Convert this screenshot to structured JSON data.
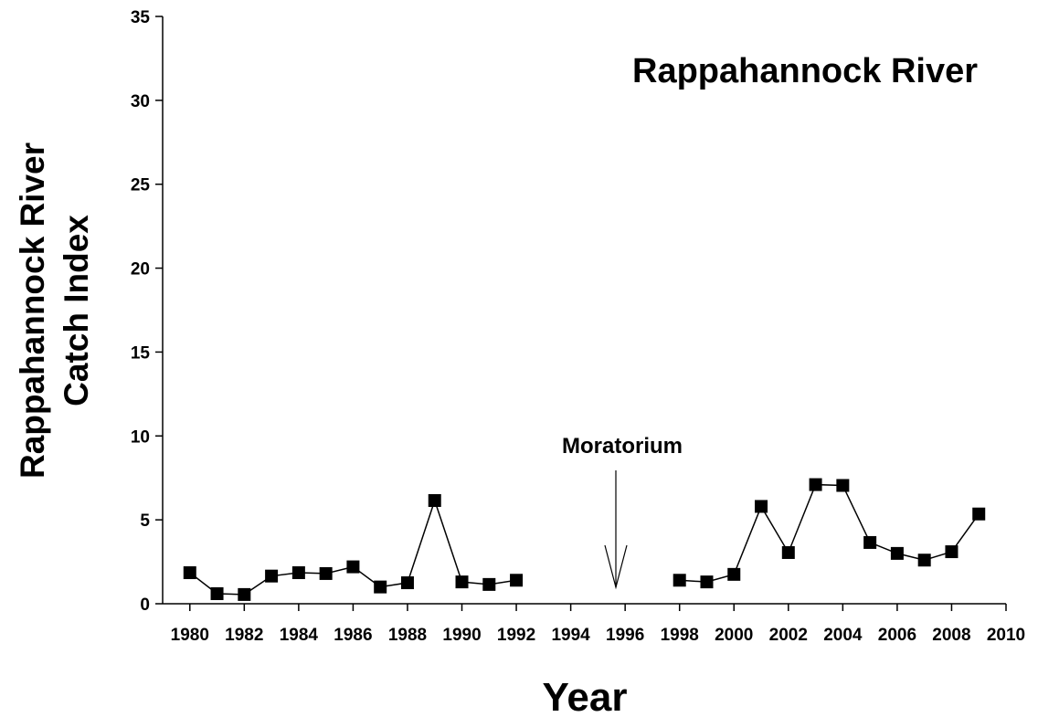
{
  "chart_data": {
    "type": "line",
    "title": "Rappahannock River",
    "x_label": "Year",
    "y_label": [
      "Rappahannock River",
      "Catch Index"
    ],
    "annotation": "Moratorium",
    "x": [
      1980,
      1981,
      1982,
      1983,
      1984,
      1985,
      1986,
      1987,
      1988,
      1989,
      1990,
      1991,
      1992,
      1993,
      1994,
      1995,
      1996,
      1997,
      1998,
      1999,
      2000,
      2001,
      2002,
      2003,
      2004,
      2005,
      2006,
      2007,
      2008,
      2009
    ],
    "series": [
      {
        "color": "#000000",
        "values": [
          1.85,
          0.6,
          0.55,
          1.65,
          1.85,
          1.8,
          2.2,
          1.0,
          1.25,
          6.15,
          1.3,
          1.15,
          1.4,
          null,
          null,
          null,
          null,
          null,
          1.4,
          1.3,
          1.75,
          5.8,
          3.05,
          7.1,
          7.05,
          3.65,
          3.0,
          2.6,
          3.1,
          5.35
        ]
      }
    ],
    "xlim": [
      1979,
      2010
    ],
    "xticks": [
      1980,
      1982,
      1984,
      1986,
      1988,
      1990,
      1992,
      1994,
      1996,
      1998,
      2000,
      2002,
      2004,
      2006,
      2008,
      2010
    ],
    "ylim": [
      0,
      35
    ],
    "yticks": [
      0,
      5,
      10,
      15,
      20,
      25,
      30,
      35
    ],
    "grid": false
  }
}
